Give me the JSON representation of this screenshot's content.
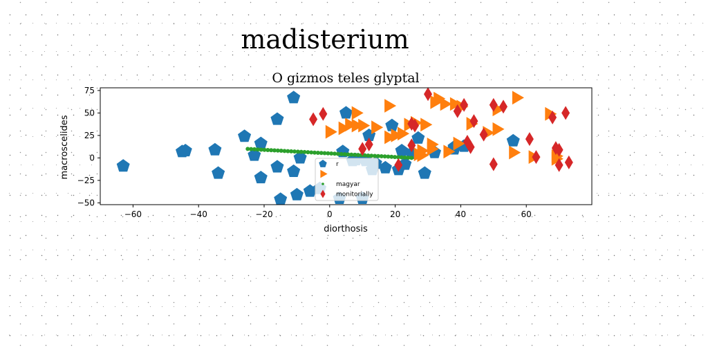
{
  "chart_data": {
    "type": "scatter",
    "suptitle": "madisterium",
    "title": "O gizmos teles glyptal",
    "xlabel": "diorthosis",
    "ylabel": "macroscelides",
    "xlim": [
      -70,
      80
    ],
    "ylim": [
      -52,
      78
    ],
    "xticks": [
      -60,
      -40,
      -20,
      0,
      20,
      40,
      60
    ],
    "yticks": [
      -50,
      -25,
      0,
      25,
      50,
      75
    ],
    "grid": false,
    "legend_position": "lower-center",
    "series": [
      {
        "name": "r",
        "marker": "pentagon",
        "color": "#1f77b4",
        "points": [
          [
            -63,
            -9
          ],
          [
            -45,
            7
          ],
          [
            -44,
            8
          ],
          [
            -35,
            9
          ],
          [
            -34,
            -17
          ],
          [
            -26,
            24
          ],
          [
            -23,
            3
          ],
          [
            -21,
            -22
          ],
          [
            -21,
            16
          ],
          [
            -16,
            -10
          ],
          [
            -16,
            43
          ],
          [
            -15,
            -46
          ],
          [
            -11,
            -15
          ],
          [
            -11,
            67
          ],
          [
            -10,
            -41
          ],
          [
            -9,
            0
          ],
          [
            -6,
            -37
          ],
          [
            -3,
            -34
          ],
          [
            3,
            -45
          ],
          [
            4,
            7
          ],
          [
            5,
            50
          ],
          [
            7,
            -3
          ],
          [
            8,
            -2
          ],
          [
            10,
            -45
          ],
          [
            11,
            -3
          ],
          [
            12,
            25
          ],
          [
            13,
            -13
          ],
          [
            14,
            -6
          ],
          [
            17,
            -11
          ],
          [
            19,
            36
          ],
          [
            21,
            -13
          ],
          [
            22,
            8
          ],
          [
            23,
            -7
          ],
          [
            25,
            5
          ],
          [
            27,
            22
          ],
          [
            29,
            -17
          ],
          [
            32,
            6
          ],
          [
            38,
            10
          ],
          [
            38,
            12
          ],
          [
            41,
            13
          ],
          [
            56,
            19
          ]
        ]
      },
      {
        "name": "",
        "marker": "triangle-right",
        "color": "#ff7f0e",
        "points": [
          [
            0,
            29
          ],
          [
            4,
            33
          ],
          [
            6,
            37
          ],
          [
            8,
            36
          ],
          [
            8,
            50
          ],
          [
            10,
            36
          ],
          [
            14,
            34
          ],
          [
            18,
            58
          ],
          [
            18,
            23
          ],
          [
            20,
            25
          ],
          [
            22,
            27
          ],
          [
            24,
            37
          ],
          [
            26,
            39
          ],
          [
            27,
            4
          ],
          [
            28,
            8
          ],
          [
            28,
            3
          ],
          [
            29,
            37
          ],
          [
            31,
            10
          ],
          [
            31,
            15
          ],
          [
            32,
            62
          ],
          [
            33,
            66
          ],
          [
            35,
            60
          ],
          [
            36,
            7
          ],
          [
            38,
            60
          ],
          [
            39,
            16
          ],
          [
            40,
            57
          ],
          [
            43,
            38
          ],
          [
            48,
            28
          ],
          [
            51,
            32
          ],
          [
            51,
            54
          ],
          [
            56,
            6
          ],
          [
            57,
            67
          ],
          [
            62,
            1
          ],
          [
            67,
            49
          ],
          [
            69,
            -1
          ],
          [
            69,
            2
          ]
        ]
      },
      {
        "name": "magyar",
        "marker": "dot",
        "color": "#2ca02c",
        "x_range": [
          -25,
          25
        ],
        "y_range": [
          10,
          0
        ],
        "count": 50
      },
      {
        "name": "monitorially",
        "marker": "diamond",
        "color": "#d62728",
        "points": [
          [
            -5,
            43
          ],
          [
            -2,
            49
          ],
          [
            10,
            10
          ],
          [
            12,
            15
          ],
          [
            21,
            -8
          ],
          [
            25,
            14
          ],
          [
            25,
            38
          ],
          [
            26,
            36
          ],
          [
            30,
            71
          ],
          [
            39,
            52
          ],
          [
            41,
            59
          ],
          [
            42,
            18
          ],
          [
            43,
            12
          ],
          [
            44,
            41
          ],
          [
            47,
            26
          ],
          [
            50,
            -7
          ],
          [
            50,
            59
          ],
          [
            53,
            57
          ],
          [
            61,
            21
          ],
          [
            63,
            1
          ],
          [
            68,
            45
          ],
          [
            69,
            11
          ],
          [
            70,
            9
          ],
          [
            70,
            -8
          ],
          [
            72,
            50
          ],
          [
            73,
            -5
          ]
        ]
      }
    ]
  }
}
